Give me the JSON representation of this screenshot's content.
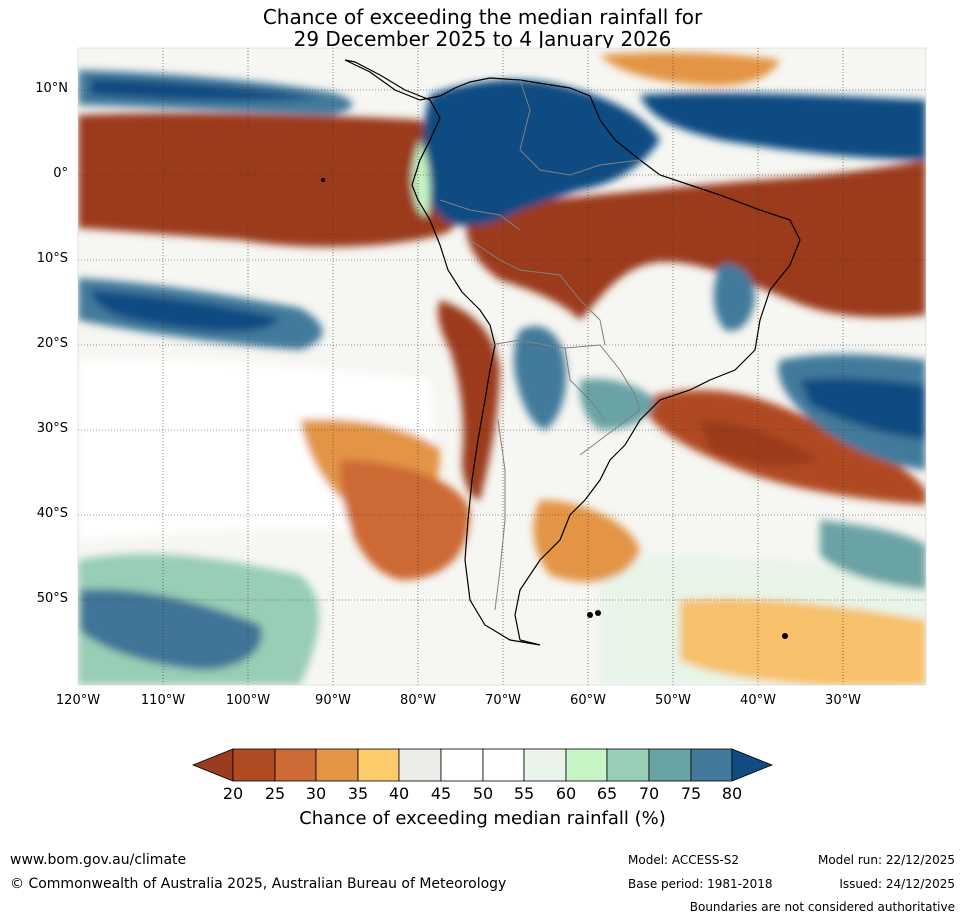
{
  "title": {
    "line1": "Chance of exceeding the median rainfall for",
    "line2": "29 December 2025 to 4 January 2026"
  },
  "map": {
    "lat_labels": [
      "10°N",
      "0°",
      "10°S",
      "20°S",
      "30°S",
      "40°S",
      "50°S"
    ],
    "lon_labels": [
      "120°W",
      "110°W",
      "100°W",
      "90°W",
      "80°W",
      "70°W",
      "60°W",
      "50°W",
      "40°W",
      "30°W"
    ]
  },
  "colorbar": {
    "ticks": [
      "20",
      "25",
      "30",
      "35",
      "40",
      "45",
      "50",
      "55",
      "60",
      "65",
      "70",
      "75",
      "80"
    ],
    "colors": [
      "#9b3b1f",
      "#b04a22",
      "#cd6934",
      "#e39545",
      "#fccb6a",
      "#eeece8",
      "#ffffff",
      "#ffffff",
      "#e8f5e8",
      "#c5f5c5",
      "#98cdb6",
      "#6aa3a5",
      "#437a9b",
      "#114b82"
    ],
    "title": "Chance of exceeding median rainfall (%)"
  },
  "footer": {
    "website": "www.bom.gov.au/climate",
    "copyright": "© Commonwealth of Australia 2025, Australian Bureau of Meteorology",
    "model": "Model: ACCESS-S2",
    "base_period": "Base period: 1981-2018",
    "model_run": "Model run: 22/12/2025",
    "issued": "Issued: 24/12/2025",
    "disclaimer": "Boundaries are not considered authoritative"
  }
}
